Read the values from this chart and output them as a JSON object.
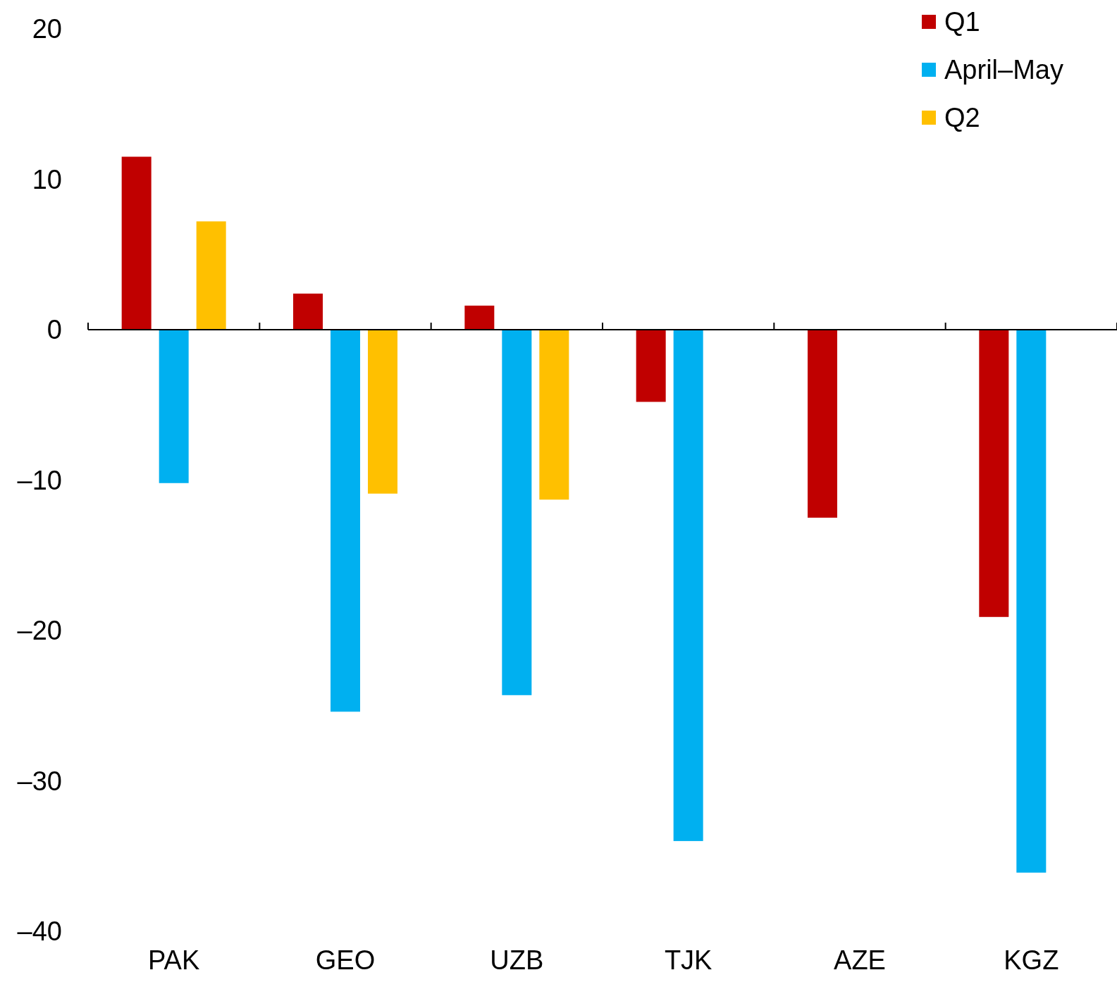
{
  "chart_data": {
    "type": "bar",
    "categories": [
      "PAK",
      "GEO",
      "UZB",
      "TJK",
      "AZE",
      "KGZ"
    ],
    "series": [
      {
        "name": "Q1",
        "color": "#c00000",
        "values": [
          11.5,
          2.4,
          1.6,
          -4.8,
          -12.5,
          -19.1
        ]
      },
      {
        "name": "April–May",
        "color": "#00b0f0",
        "values": [
          -10.2,
          -25.4,
          -24.3,
          -34.0,
          null,
          -36.1
        ]
      },
      {
        "name": "Q2",
        "color": "#ffc000",
        "values": [
          7.2,
          -10.9,
          -11.3,
          null,
          null,
          null
        ]
      }
    ],
    "ylim": [
      -40,
      20
    ],
    "yticks": [
      {
        "value": -40,
        "label": "–40"
      },
      {
        "value": -30,
        "label": "–30"
      },
      {
        "value": -20,
        "label": "–20"
      },
      {
        "value": -10,
        "label": "–10"
      },
      0,
      10,
      20
    ],
    "legend": "top right"
  }
}
